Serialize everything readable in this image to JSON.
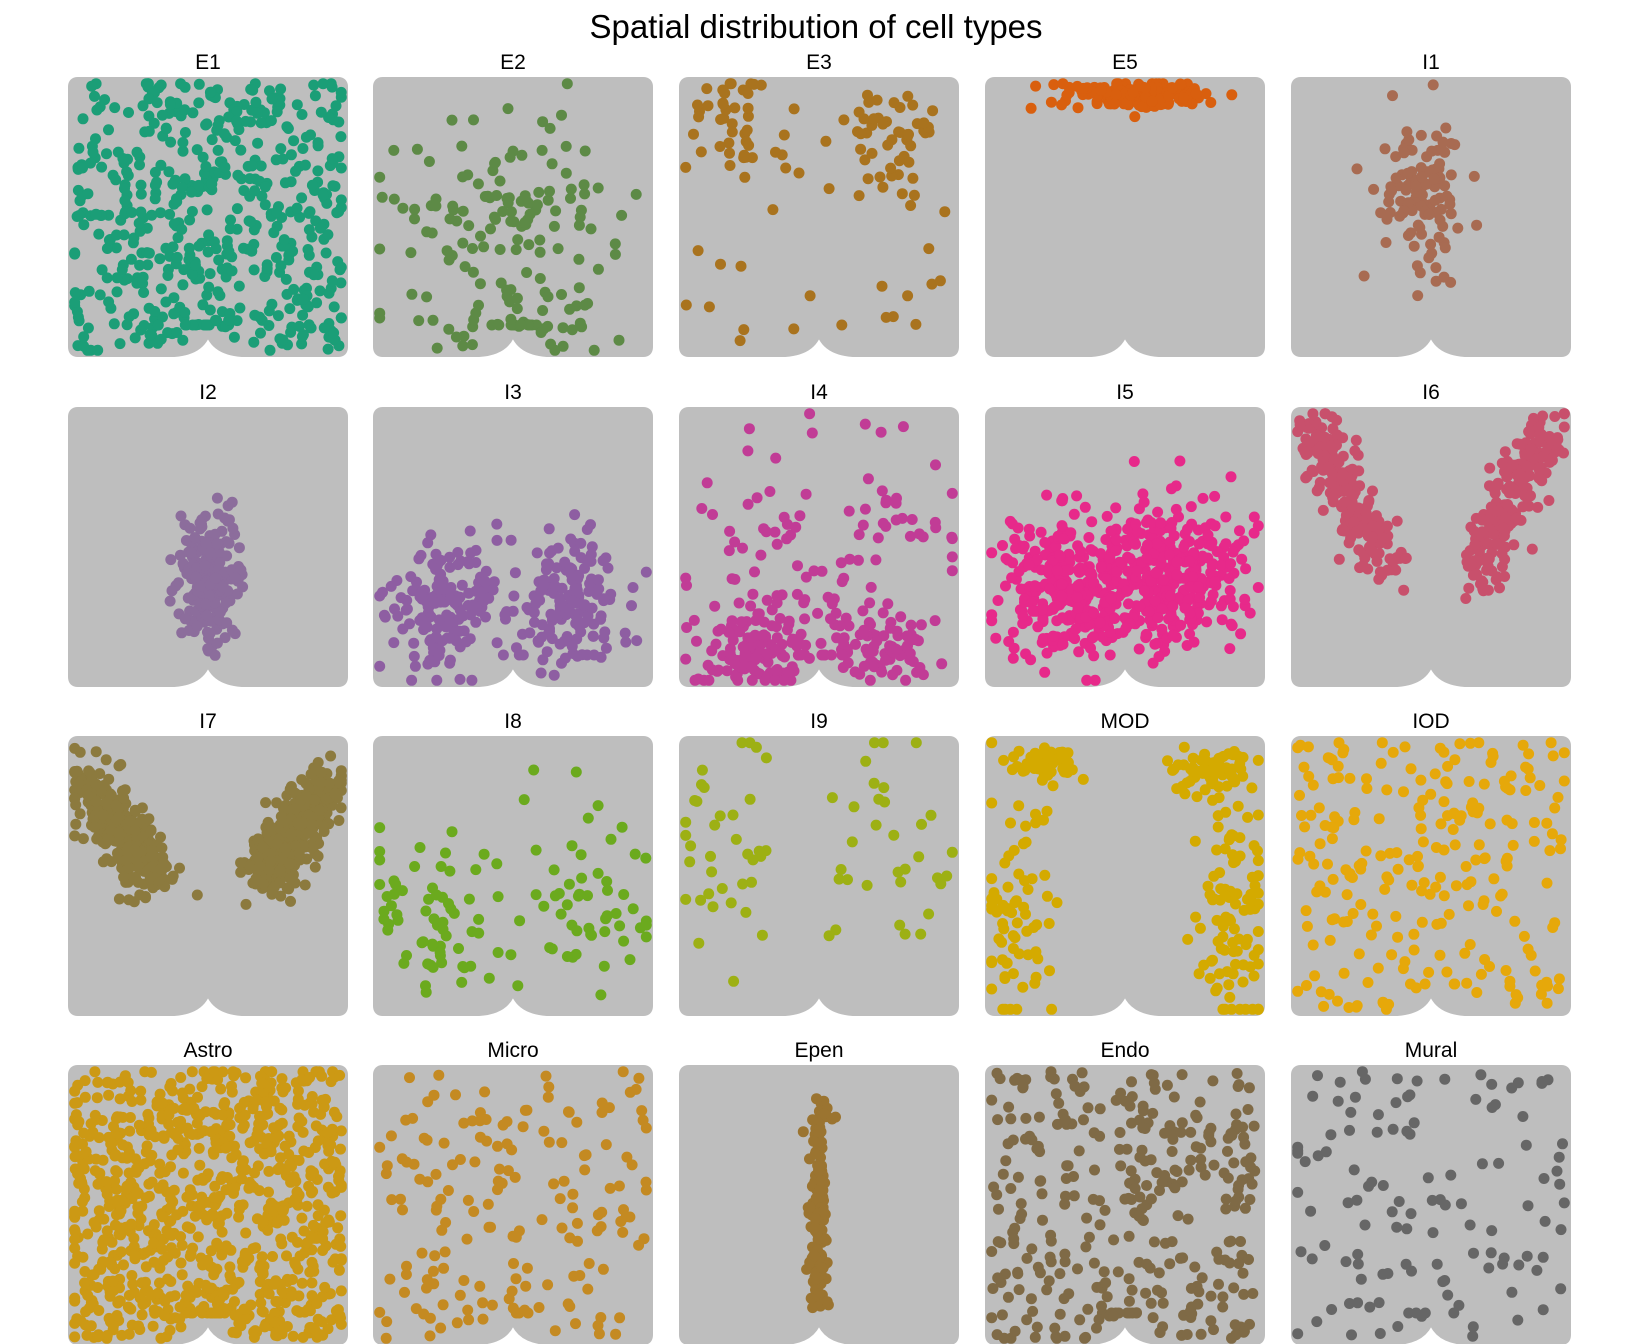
{
  "chart_data": {
    "type": "scatter",
    "title": "Spatial distribution of cell types",
    "xlabel": "",
    "ylabel": "",
    "grid": false,
    "background_points_color": "#BEBEBE",
    "xlim": [
      0,
      1
    ],
    "ylim": [
      0,
      1
    ],
    "layout": {
      "rows": 4,
      "cols": 5
    },
    "panels": [
      {
        "name": "E1",
        "color": "#1B9E77",
        "pattern": "uniform",
        "n": 520,
        "seed": 11
      },
      {
        "name": "E2",
        "color": "#5D8A46",
        "pattern": "scatter_mid",
        "n": 170,
        "seed": 12
      },
      {
        "name": "E3",
        "color": "#A9731E",
        "pattern": "upper_sparse",
        "n": 120,
        "seed": 13
      },
      {
        "name": "E5",
        "color": "#D95F0E",
        "pattern": "top_band",
        "n": 170,
        "seed": 14
      },
      {
        "name": "I1",
        "color": "#A86B52",
        "pattern": "center_blob",
        "n": 110,
        "seed": 15
      },
      {
        "name": "I2",
        "color": "#8C6D9C",
        "pattern": "center_vertical",
        "n": 220,
        "seed": 16
      },
      {
        "name": "I3",
        "color": "#8E5EA2",
        "pattern": "lower_wings",
        "n": 320,
        "seed": 17
      },
      {
        "name": "I4",
        "color": "#C13C96",
        "pattern": "dorsal_u",
        "n": 300,
        "seed": 18
      },
      {
        "name": "I5",
        "color": "#E7298A",
        "pattern": "mid_dense",
        "n": 620,
        "seed": 19
      },
      {
        "name": "I6",
        "color": "#C8506C",
        "pattern": "v_wings",
        "n": 420,
        "seed": 20
      },
      {
        "name": "I7",
        "color": "#8C7A3E",
        "pattern": "upper_corners",
        "n": 720,
        "seed": 21
      },
      {
        "name": "I8",
        "color": "#6BAA1E",
        "pattern": "lower_sparse",
        "n": 120,
        "seed": 22
      },
      {
        "name": "I9",
        "color": "#9DB014",
        "pattern": "sparse_sides",
        "n": 70,
        "seed": 23
      },
      {
        "name": "MOD",
        "color": "#D4AA00",
        "pattern": "corners_edges",
        "n": 300,
        "seed": 24
      },
      {
        "name": "IOD",
        "color": "#E6A80A",
        "pattern": "uniform",
        "n": 240,
        "seed": 25
      },
      {
        "name": "Astro",
        "color": "#CC9914",
        "pattern": "uniform",
        "n": 900,
        "seed": 26
      },
      {
        "name": "Micro",
        "color": "#C48A22",
        "pattern": "uniform",
        "n": 170,
        "seed": 27
      },
      {
        "name": "Epen",
        "color": "#9B7430",
        "pattern": "central_line",
        "n": 160,
        "seed": 28
      },
      {
        "name": "Endo",
        "color": "#7F6A46",
        "pattern": "uniform",
        "n": 330,
        "seed": 29
      },
      {
        "name": "Mural",
        "color": "#666666",
        "pattern": "uniform",
        "n": 120,
        "seed": 30
      }
    ]
  }
}
